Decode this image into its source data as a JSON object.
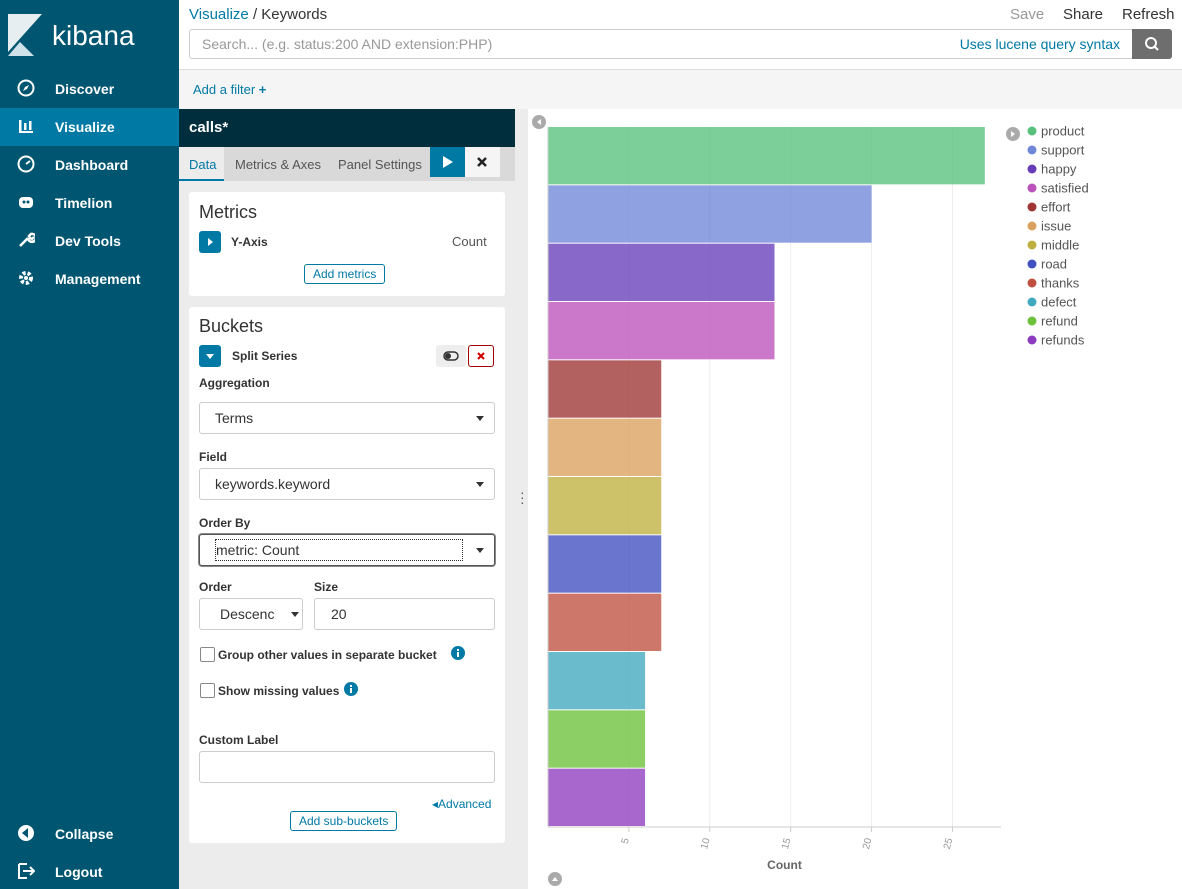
{
  "sidebar": {
    "brand": "kibana",
    "nav": [
      "Discover",
      "Visualize",
      "Dashboard",
      "Timelion",
      "Dev Tools",
      "Management"
    ],
    "footer": [
      "Collapse",
      "Logout"
    ]
  },
  "header": {
    "breadcrumbs": [
      "Visualize",
      "/",
      "Keywords"
    ],
    "actions": [
      "Save",
      "Share",
      "Refresh"
    ],
    "search_placeholder": "Search... (e.g. status:200 AND extension:PHP)",
    "syntax_link": "Uses lucene query syntax",
    "add_filter": "Add a filter"
  },
  "editor": {
    "index": "calls*",
    "tabs": [
      "Data",
      "Metrics & Axes",
      "Panel Settings"
    ],
    "metrics": {
      "title": "Metrics",
      "item": "Y-Axis",
      "item_value": "Count",
      "button": "Add metrics"
    },
    "buckets": {
      "title": "Buckets",
      "item": "Split Series",
      "aggregation_label": "Aggregation",
      "aggregation": "Terms",
      "field_label": "Field",
      "field": "keywords.keyword",
      "order_by_label": "Order By",
      "order_by": "metric: Count",
      "order_label": "Order",
      "order": "Descenc",
      "size_label": "Size",
      "size": "20",
      "group_other": "Group other values in separate bucket",
      "show_missing": "Show missing values",
      "custom_label_label": "Custom Label",
      "advanced": "Advanced",
      "button": "Add sub-buckets"
    }
  },
  "chart_data": {
    "type": "bar",
    "orientation": "horizontal",
    "xlabel": "Count",
    "categories": [
      "product",
      "support",
      "happy",
      "satisfied",
      "effort",
      "issue",
      "middle",
      "road",
      "thanks",
      "defect",
      "refund",
      "refunds"
    ],
    "values": [
      27,
      20,
      14,
      14,
      7,
      7,
      7,
      7,
      7,
      6,
      6,
      6
    ],
    "colors": [
      "#57c17b",
      "#6f87d8",
      "#663db8",
      "#bc52bc",
      "#9e3533",
      "#daa05d",
      "#bfaf40",
      "#4050bf",
      "#bf5040",
      "#40a9bf",
      "#6cc13a",
      "#8e3cbf"
    ],
    "xlim": [
      0,
      28
    ],
    "xticks": [
      5,
      10,
      15,
      20,
      25
    ],
    "grid": true
  }
}
